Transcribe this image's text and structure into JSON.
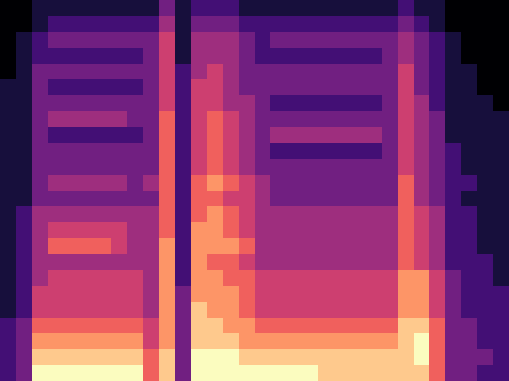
{
  "chart_data": {
    "type": "heatmap",
    "color": "magma",
    "tick_labels": false,
    "cells": [
      [
        0,
        0,
        1,
        1,
        1,
        1,
        1,
        1,
        1,
        1,
        3,
        1,
        2,
        2,
        2,
        1,
        1,
        1,
        1,
        1,
        1,
        1,
        1,
        1,
        1,
        2,
        1,
        1,
        0,
        0,
        0,
        0
      ],
      [
        0,
        0,
        1,
        2,
        2,
        2,
        2,
        2,
        2,
        2,
        4,
        1,
        3,
        3,
        3,
        2,
        2,
        2,
        2,
        2,
        2,
        2,
        2,
        2,
        2,
        3,
        2,
        1,
        0,
        0,
        0,
        0
      ],
      [
        0,
        1,
        2,
        3,
        3,
        3,
        3,
        3,
        3,
        3,
        5,
        1,
        4,
        4,
        4,
        3,
        2,
        3,
        3,
        3,
        3,
        3,
        3,
        3,
        3,
        4,
        3,
        2,
        1,
        0,
        0,
        0
      ],
      [
        0,
        1,
        2,
        2,
        2,
        2,
        2,
        2,
        2,
        3,
        5,
        1,
        4,
        4,
        4,
        3,
        2,
        2,
        2,
        2,
        2,
        2,
        2,
        2,
        3,
        4,
        3,
        2,
        1,
        0,
        0,
        0
      ],
      [
        0,
        1,
        3,
        3,
        3,
        3,
        3,
        3,
        3,
        3,
        5,
        2,
        4,
        5,
        4,
        3,
        3,
        3,
        3,
        3,
        3,
        3,
        3,
        3,
        3,
        5,
        3,
        2,
        1,
        1,
        0,
        0
      ],
      [
        1,
        1,
        3,
        2,
        2,
        2,
        2,
        2,
        2,
        3,
        5,
        2,
        5,
        5,
        4,
        3,
        3,
        3,
        3,
        3,
        3,
        3,
        3,
        3,
        3,
        5,
        3,
        2,
        1,
        1,
        0,
        0
      ],
      [
        1,
        1,
        3,
        3,
        3,
        3,
        3,
        3,
        3,
        3,
        5,
        2,
        5,
        5,
        4,
        4,
        3,
        2,
        2,
        2,
        2,
        2,
        2,
        2,
        3,
        5,
        4,
        2,
        1,
        1,
        1,
        0
      ],
      [
        1,
        1,
        3,
        4,
        4,
        4,
        4,
        4,
        3,
        3,
        6,
        2,
        5,
        6,
        5,
        4,
        3,
        3,
        3,
        3,
        3,
        3,
        3,
        3,
        3,
        5,
        4,
        3,
        1,
        1,
        1,
        1
      ],
      [
        1,
        1,
        3,
        2,
        2,
        2,
        2,
        2,
        2,
        3,
        6,
        2,
        5,
        6,
        5,
        4,
        3,
        4,
        4,
        4,
        4,
        4,
        4,
        4,
        3,
        5,
        4,
        3,
        1,
        1,
        1,
        1
      ],
      [
        1,
        1,
        3,
        3,
        3,
        3,
        3,
        3,
        3,
        3,
        6,
        2,
        5,
        6,
        5,
        4,
        3,
        2,
        2,
        2,
        2,
        2,
        2,
        2,
        3,
        5,
        4,
        3,
        2,
        1,
        1,
        1
      ],
      [
        1,
        1,
        3,
        3,
        3,
        3,
        3,
        3,
        3,
        3,
        6,
        2,
        5,
        6,
        5,
        4,
        3,
        3,
        3,
        3,
        3,
        3,
        3,
        3,
        3,
        5,
        4,
        3,
        2,
        1,
        1,
        1
      ],
      [
        1,
        1,
        3,
        4,
        4,
        4,
        4,
        4,
        3,
        4,
        6,
        2,
        6,
        7,
        6,
        5,
        4,
        3,
        3,
        3,
        3,
        3,
        3,
        3,
        3,
        6,
        4,
        3,
        2,
        2,
        1,
        1
      ],
      [
        1,
        1,
        3,
        3,
        3,
        3,
        3,
        3,
        3,
        3,
        6,
        2,
        6,
        6,
        5,
        5,
        4,
        3,
        3,
        3,
        3,
        3,
        3,
        3,
        3,
        6,
        4,
        3,
        2,
        1,
        1,
        1
      ],
      [
        1,
        2,
        4,
        4,
        4,
        4,
        4,
        4,
        4,
        4,
        6,
        2,
        6,
        7,
        6,
        5,
        4,
        4,
        4,
        4,
        4,
        4,
        4,
        4,
        4,
        6,
        5,
        4,
        2,
        2,
        1,
        1
      ],
      [
        1,
        2,
        4,
        5,
        5,
        5,
        5,
        5,
        4,
        4,
        6,
        2,
        7,
        7,
        6,
        5,
        4,
        4,
        4,
        4,
        4,
        4,
        4,
        4,
        4,
        6,
        5,
        4,
        2,
        2,
        1,
        1
      ],
      [
        1,
        2,
        4,
        6,
        6,
        6,
        6,
        5,
        4,
        4,
        7,
        2,
        7,
        7,
        7,
        6,
        4,
        4,
        4,
        4,
        4,
        4,
        4,
        4,
        4,
        6,
        5,
        4,
        2,
        2,
        1,
        1
      ],
      [
        1,
        2,
        4,
        4,
        4,
        4,
        4,
        4,
        4,
        4,
        7,
        2,
        7,
        6,
        6,
        5,
        4,
        4,
        4,
        4,
        4,
        4,
        4,
        4,
        4,
        6,
        5,
        4,
        2,
        2,
        2,
        1
      ],
      [
        1,
        2,
        4,
        5,
        5,
        5,
        5,
        5,
        5,
        4,
        7,
        2,
        7,
        7,
        6,
        6,
        5,
        5,
        5,
        5,
        5,
        5,
        5,
        5,
        5,
        7,
        7,
        5,
        3,
        2,
        2,
        1
      ],
      [
        1,
        2,
        5,
        5,
        5,
        5,
        5,
        5,
        5,
        4,
        7,
        3,
        7,
        7,
        7,
        6,
        5,
        5,
        5,
        5,
        5,
        5,
        5,
        5,
        5,
        7,
        7,
        5,
        3,
        2,
        2,
        2
      ],
      [
        1,
        2,
        5,
        5,
        5,
        5,
        5,
        5,
        5,
        4,
        7,
        3,
        8,
        7,
        7,
        6,
        5,
        5,
        5,
        5,
        5,
        5,
        5,
        5,
        5,
        7,
        7,
        5,
        3,
        2,
        2,
        2
      ],
      [
        2,
        3,
        6,
        6,
        6,
        6,
        6,
        6,
        6,
        5,
        7,
        3,
        8,
        8,
        7,
        7,
        6,
        6,
        6,
        6,
        6,
        6,
        6,
        6,
        6,
        8,
        8,
        6,
        3,
        3,
        2,
        2
      ],
      [
        2,
        3,
        7,
        7,
        7,
        7,
        7,
        7,
        7,
        5,
        7,
        3,
        8,
        8,
        8,
        7,
        7,
        7,
        7,
        7,
        7,
        7,
        7,
        7,
        7,
        8,
        9,
        6,
        3,
        3,
        2,
        2
      ],
      [
        2,
        3,
        8,
        8,
        8,
        8,
        8,
        8,
        8,
        6,
        8,
        3,
        9,
        9,
        9,
        8,
        8,
        8,
        8,
        8,
        8,
        8,
        8,
        8,
        8,
        8,
        9,
        6,
        3,
        3,
        3,
        2
      ],
      [
        2,
        3,
        9,
        9,
        9,
        9,
        9,
        9,
        9,
        6,
        8,
        3,
        9,
        9,
        9,
        9,
        9,
        9,
        9,
        9,
        8,
        8,
        8,
        8,
        8,
        8,
        8,
        6,
        3,
        3,
        2,
        2
      ]
    ]
  }
}
